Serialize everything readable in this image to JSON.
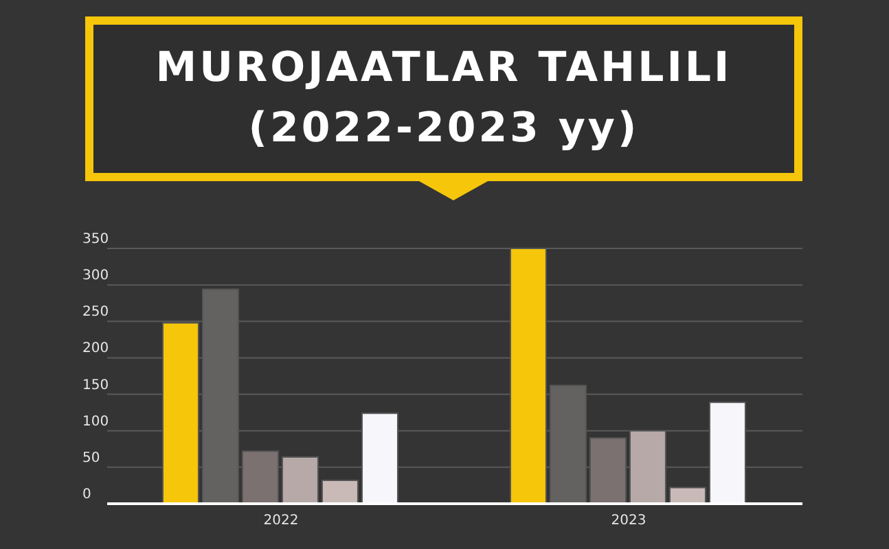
{
  "chart_data": {
    "type": "bar",
    "title": "MUROJAATLAR TAHLILI",
    "subtitle": "(2022-2023 yy)",
    "categories": [
      "2022",
      "2023"
    ],
    "series": [
      {
        "color": "#f5c60a",
        "values": [
          248,
          350
        ]
      },
      {
        "color": "#636260",
        "values": [
          294,
          162
        ]
      },
      {
        "color": "#7b7170",
        "values": [
          72,
          90
        ]
      },
      {
        "color": "#b7a9a8",
        "values": [
          64,
          100
        ]
      },
      {
        "color": "#c9b9b7",
        "values": [
          32,
          22
        ]
      },
      {
        "color": "#f6f6fb",
        "values": [
          124,
          139
        ]
      }
    ],
    "ylim": [
      0,
      350
    ],
    "yticks": [
      0,
      50,
      100,
      150,
      200,
      250,
      300,
      350
    ],
    "grid": "y",
    "legend": false
  }
}
